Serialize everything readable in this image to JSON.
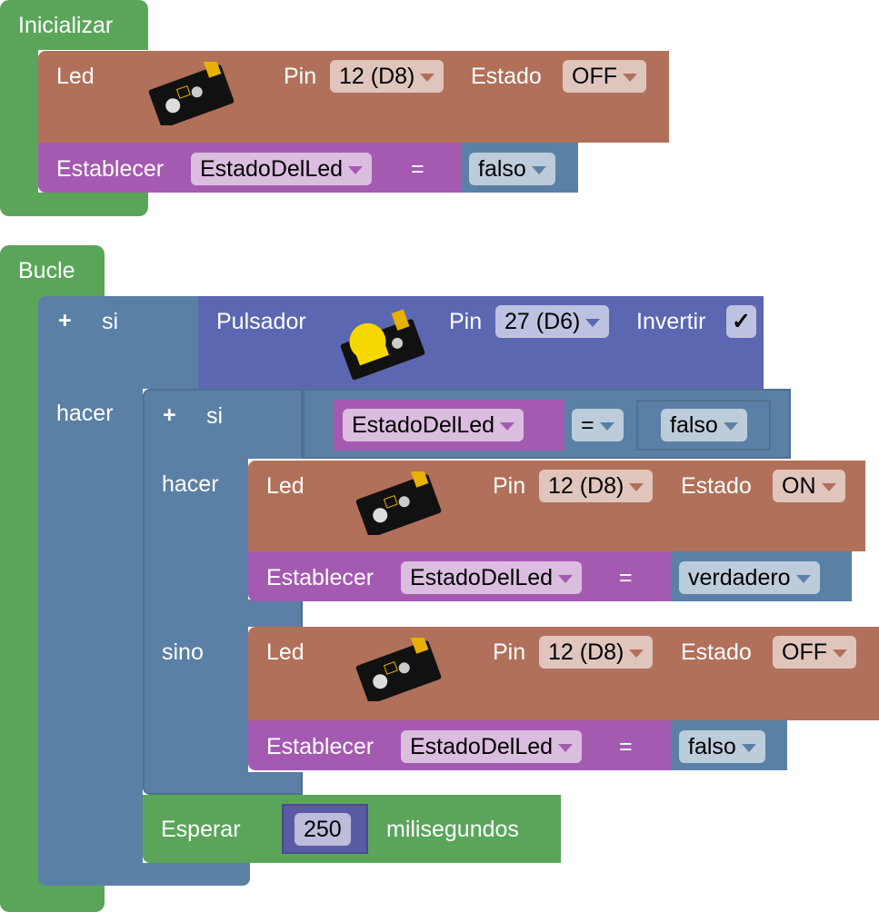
{
  "colors": {
    "event": "#5ba55b",
    "led": "#b1705a",
    "variable": "#a55ab1",
    "logic": "#5b80a5",
    "sensor": "#5b67b1",
    "number": "#5b5ba5"
  },
  "init": {
    "title": "Inicializar",
    "led": {
      "label": "Led",
      "pin_label": "Pin",
      "pin": "12 (D8)",
      "state_label": "Estado",
      "state": "OFF",
      "icon": "led-module-image"
    },
    "set": {
      "label": "Establecer",
      "var": "EstadoDelLed",
      "eq": "=",
      "value": "falso"
    }
  },
  "loop": {
    "title": "Bucle",
    "if": {
      "si": "si",
      "hacer": "hacer",
      "cond": {
        "label": "Pulsador",
        "pin_label": "Pin",
        "pin": "27 (D6)",
        "invert_label": "Invertir",
        "invert": "✓",
        "icon": "button-module-image"
      },
      "inner_if": {
        "si": "si",
        "hacer": "hacer",
        "sino": "sino",
        "cond": {
          "var": "EstadoDelLed",
          "op": "=",
          "value": "falso"
        },
        "then_led": {
          "label": "Led",
          "pin_label": "Pin",
          "pin": "12 (D8)",
          "state_label": "Estado",
          "state": "ON"
        },
        "then_set": {
          "label": "Establecer",
          "var": "EstadoDelLed",
          "eq": "=",
          "value": "verdadero"
        },
        "else_led": {
          "label": "Led",
          "pin_label": "Pin",
          "pin": "12 (D8)",
          "state_label": "Estado",
          "state": "OFF"
        },
        "else_set": {
          "label": "Establecer",
          "var": "EstadoDelLed",
          "eq": "=",
          "value": "falso"
        }
      },
      "wait": {
        "label": "Esperar",
        "value": "250",
        "unit": "milisegundos"
      }
    }
  }
}
